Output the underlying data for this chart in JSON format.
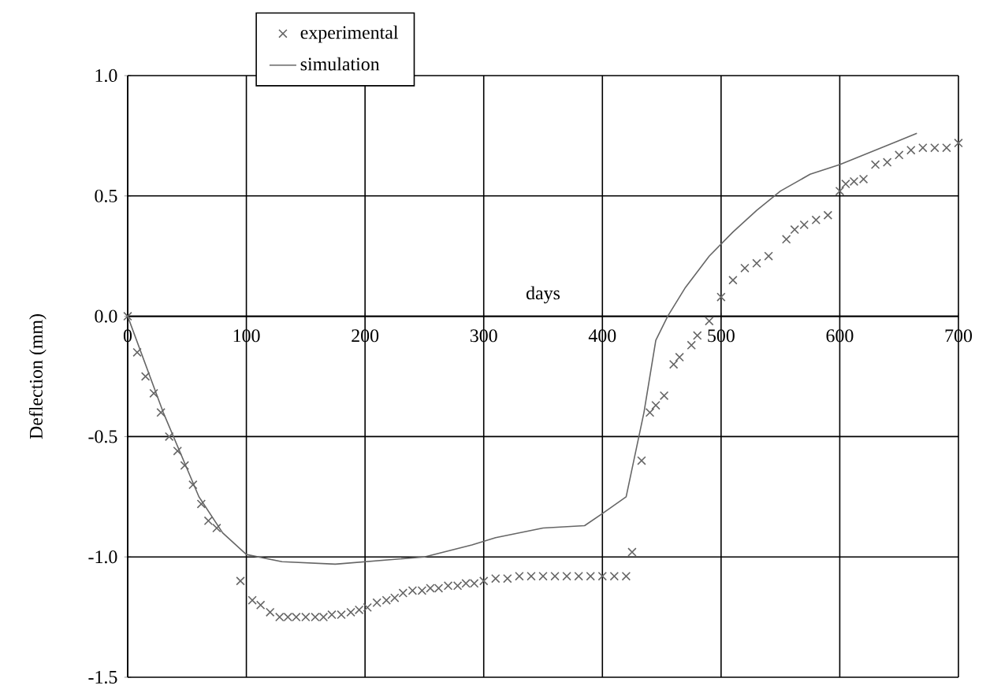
{
  "chart_data": {
    "type": "line",
    "xlabel": "days",
    "ylabel": "Deflection (mm)",
    "xlim": [
      0,
      700
    ],
    "xticks": [
      0,
      100,
      200,
      300,
      400,
      500,
      600,
      700
    ],
    "ylim": [
      -1.5,
      1.0
    ],
    "yticks": [
      {
        "value": -1.5,
        "label": "-1.5"
      },
      {
        "value": -1.0,
        "label": "-1.0"
      },
      {
        "value": -0.5,
        "label": "-0.5"
      },
      {
        "value": 0,
        "label": "0.0"
      },
      {
        "value": 0.5,
        "label": "0.5"
      },
      {
        "value": 1.0,
        "label": "1.0"
      }
    ],
    "grid": true,
    "legend": "top left",
    "series": [
      {
        "name": "experimental",
        "type": "scatter",
        "marker": "cross",
        "color": "#666666",
        "x": [
          0,
          8,
          15,
          22,
          28,
          35,
          42,
          48,
          55,
          62,
          68,
          75,
          95,
          105,
          112,
          120,
          128,
          135,
          142,
          150,
          158,
          165,
          172,
          180,
          188,
          195,
          202,
          210,
          218,
          225,
          232,
          240,
          248,
          255,
          262,
          270,
          278,
          285,
          292,
          300,
          310,
          320,
          330,
          340,
          350,
          360,
          370,
          380,
          390,
          400,
          410,
          420,
          425,
          433,
          440,
          445,
          452,
          460,
          465,
          475,
          480,
          490,
          500,
          510,
          520,
          530,
          540,
          555,
          562,
          570,
          580,
          590,
          600,
          605,
          612,
          620,
          630,
          640,
          650,
          660,
          670,
          680,
          690,
          700
        ],
        "values": [
          0,
          -0.15,
          -0.25,
          -0.32,
          -0.4,
          -0.5,
          -0.56,
          -0.62,
          -0.7,
          -0.78,
          -0.85,
          -0.88,
          -1.1,
          -1.18,
          -1.2,
          -1.23,
          -1.25,
          -1.25,
          -1.25,
          -1.25,
          -1.25,
          -1.25,
          -1.24,
          -1.24,
          -1.23,
          -1.22,
          -1.21,
          -1.19,
          -1.18,
          -1.17,
          -1.15,
          -1.14,
          -1.14,
          -1.13,
          -1.13,
          -1.12,
          -1.12,
          -1.11,
          -1.11,
          -1.1,
          -1.09,
          -1.09,
          -1.08,
          -1.08,
          -1.08,
          -1.08,
          -1.08,
          -1.08,
          -1.08,
          -1.08,
          -1.08,
          -1.08,
          -0.98,
          -0.6,
          -0.4,
          -0.37,
          -0.33,
          -0.2,
          -0.17,
          -0.12,
          -0.08,
          -0.02,
          0.08,
          0.15,
          0.2,
          0.22,
          0.25,
          0.32,
          0.36,
          0.38,
          0.4,
          0.42,
          0.52,
          0.55,
          0.56,
          0.57,
          0.63,
          0.64,
          0.67,
          0.69,
          0.7,
          0.7,
          0.7,
          0.72
        ]
      },
      {
        "name": "simulation",
        "line_style": "solid",
        "color": "#666666",
        "x": [
          0,
          30,
          60,
          80,
          100,
          130,
          175,
          250,
          290,
          310,
          350,
          385,
          400,
          420,
          435,
          445,
          455,
          470,
          490,
          510,
          530,
          550,
          575,
          600,
          625,
          650,
          665
        ],
        "values": [
          0,
          -0.4,
          -0.75,
          -0.9,
          -0.99,
          -1.02,
          -1.03,
          -1.0,
          -0.95,
          -0.92,
          -0.88,
          -0.87,
          -0.82,
          -0.75,
          -0.4,
          -0.1,
          0.0,
          0.12,
          0.25,
          0.35,
          0.44,
          0.52,
          0.59,
          0.63,
          0.68,
          0.73,
          0.76
        ]
      }
    ]
  }
}
